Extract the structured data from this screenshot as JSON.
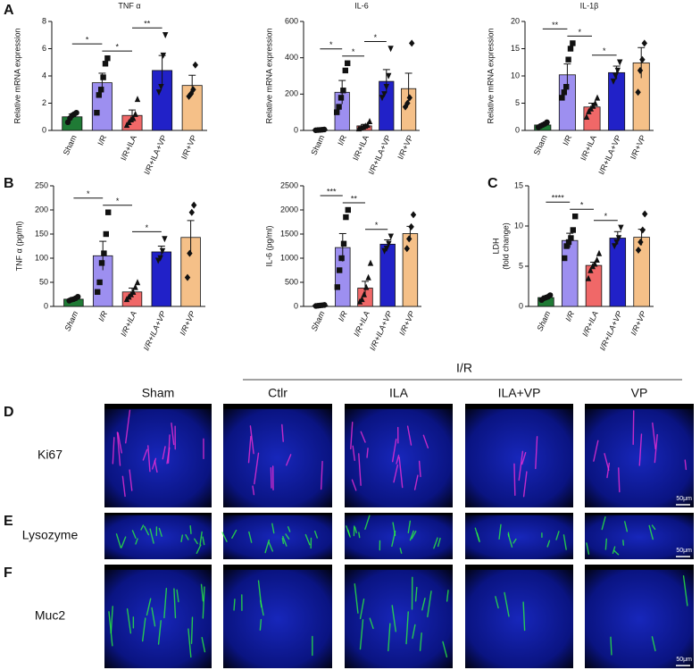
{
  "chart_data": [
    {
      "type": "bar",
      "panel": "A",
      "title": "TNF α",
      "ylabel": "Relative mRNA expression",
      "categories": [
        "Sham",
        "I/R",
        "I/R+ILA",
        "I/R+ILA+VP",
        "I/R+VP"
      ],
      "colors": [
        "#1f7a35",
        "#9d8ff0",
        "#f06868",
        "#2121c8",
        "#f5c088"
      ],
      "values": [
        1.0,
        3.5,
        1.1,
        4.4,
        3.3
      ],
      "errors": [
        0.2,
        0.7,
        0.4,
        1.1,
        0.75
      ],
      "points": [
        [
          0.6,
          0.9,
          1.1,
          1.2,
          1.3
        ],
        [
          1.3,
          2.6,
          3.0,
          3.9,
          4.9,
          5.3
        ],
        [
          0.4,
          0.6,
          0.8,
          0.9,
          1.2,
          2.3
        ],
        [
          2.8,
          3.2,
          5.5,
          7.0
        ],
        [
          2.5,
          2.7,
          3.0,
          4.8
        ]
      ],
      "ylim": [
        0,
        8
      ],
      "yticks": [
        0,
        2,
        4,
        6,
        8
      ],
      "significance": [
        {
          "label": "*",
          "from": 0,
          "to": 1
        },
        {
          "label": "*",
          "from": 1,
          "to": 2
        },
        {
          "label": "**",
          "from": 2,
          "to": 3
        }
      ]
    },
    {
      "type": "bar",
      "title": "IL-6",
      "ylabel": "Relative mRNA expression",
      "categories": [
        "Sham",
        "I/R",
        "I/R+ILA",
        "I/R+ILA+VP",
        "I/R+VP"
      ],
      "colors": [
        "#1f7a35",
        "#9d8ff0",
        "#f06868",
        "#2121c8",
        "#f5c088"
      ],
      "values": [
        3,
        210,
        25,
        270,
        230
      ],
      "errors": [
        1,
        65,
        8,
        65,
        85
      ],
      "points": [
        [
          1,
          2,
          3,
          4,
          5
        ],
        [
          100,
          130,
          180,
          220,
          330,
          370
        ],
        [
          10,
          15,
          20,
          25,
          30,
          50
        ],
        [
          180,
          200,
          240,
          300,
          450
        ],
        [
          130,
          150,
          180,
          480
        ]
      ],
      "ylim": [
        0,
        600
      ],
      "yticks": [
        0,
        200,
        400,
        600
      ],
      "significance": [
        {
          "label": "*",
          "from": 0,
          "to": 1
        },
        {
          "label": "*",
          "from": 1,
          "to": 2
        },
        {
          "label": "*",
          "from": 2,
          "to": 3
        }
      ]
    },
    {
      "type": "bar",
      "title": "IL-1β",
      "ylabel": "Relative mRNA expression",
      "categories": [
        "Sham",
        "I/R",
        "I/R+ILA",
        "I/R+ILA+VP",
        "I/R+VP"
      ],
      "colors": [
        "#1f7a35",
        "#9d8ff0",
        "#f06868",
        "#2121c8",
        "#f5c088"
      ],
      "values": [
        1.0,
        10.2,
        4.3,
        10.6,
        12.4
      ],
      "errors": [
        0.2,
        2.0,
        0.7,
        1.2,
        2.8
      ],
      "points": [
        [
          0.6,
          0.8,
          1.0,
          1.2,
          1.5
        ],
        [
          6,
          7,
          8,
          13,
          15,
          16
        ],
        [
          2.5,
          3.5,
          4,
          4.5,
          5,
          6
        ],
        [
          9,
          10,
          11,
          12.5
        ],
        [
          7,
          11,
          13,
          16
        ]
      ],
      "ylim": [
        0,
        20
      ],
      "yticks": [
        0,
        5,
        10,
        15,
        20
      ],
      "significance": [
        {
          "label": "**",
          "from": 0,
          "to": 1
        },
        {
          "label": "*",
          "from": 1,
          "to": 2
        },
        {
          "label": "*",
          "from": 2,
          "to": 3
        }
      ]
    },
    {
      "type": "bar",
      "panel": "B",
      "ylabel": "TNF α (pg/ml)",
      "categories": [
        "Sham",
        "I/R",
        "I/R+ILA",
        "I/R+ILA+VP",
        "I/R+VP"
      ],
      "colors": [
        "#1f7a35",
        "#9d8ff0",
        "#f06868",
        "#2121c8",
        "#f5c088"
      ],
      "values": [
        15,
        105,
        30,
        113,
        143
      ],
      "errors": [
        3,
        30,
        8,
        12,
        35
      ],
      "points": [
        [
          12,
          14,
          15,
          17,
          20
        ],
        [
          30,
          50,
          90,
          110,
          150,
          195
        ],
        [
          15,
          20,
          25,
          30,
          40,
          50
        ],
        [
          95,
          100,
          115,
          140
        ],
        [
          60,
          110,
          195,
          210
        ]
      ],
      "ylim": [
        0,
        250
      ],
      "yticks": [
        0,
        50,
        100,
        150,
        200,
        250
      ],
      "significance": [
        {
          "label": "*",
          "from": 0,
          "to": 1
        },
        {
          "label": "*",
          "from": 1,
          "to": 2
        },
        {
          "label": "*",
          "from": 2,
          "to": 3
        }
      ]
    },
    {
      "type": "bar",
      "ylabel": "IL-6 (pg/ml)",
      "categories": [
        "Sham",
        "I/R",
        "I/R+ILA",
        "I/R+ILA+VP",
        "I/R+VP"
      ],
      "colors": [
        "#1f7a35",
        "#9d8ff0",
        "#f06868",
        "#2121c8",
        "#f5c088"
      ],
      "values": [
        20,
        1220,
        380,
        1290,
        1510
      ],
      "errors": [
        5,
        290,
        140,
        90,
        150
      ],
      "points": [
        [
          10,
          15,
          20,
          25,
          30
        ],
        [
          400,
          750,
          1000,
          1300,
          1850,
          2000
        ],
        [
          100,
          150,
          250,
          400,
          600,
          900
        ],
        [
          1150,
          1200,
          1300,
          1450
        ],
        [
          1200,
          1400,
          1650,
          1900
        ]
      ],
      "ylim": [
        0,
        2500
      ],
      "yticks": [
        0,
        500,
        1000,
        1500,
        2000,
        2500
      ],
      "significance": [
        {
          "label": "***",
          "from": 0,
          "to": 1
        },
        {
          "label": "**",
          "from": 1,
          "to": 2
        },
        {
          "label": "*",
          "from": 2,
          "to": 3
        }
      ]
    },
    {
      "type": "bar",
      "panel": "C",
      "ylabel": [
        "LDH",
        "(fold change)"
      ],
      "categories": [
        "Sham",
        "I/R",
        "I/R+ILA",
        "I/R+ILA+VP",
        "I/R+VP"
      ],
      "colors": [
        "#1f7a35",
        "#9d8ff0",
        "#f06868",
        "#2121c8",
        "#f5c088"
      ],
      "values": [
        1.1,
        8.2,
        5.1,
        8.5,
        8.6
      ],
      "errors": [
        0.2,
        0.9,
        0.4,
        0.8,
        1.0
      ],
      "points": [
        [
          0.8,
          1.0,
          1.1,
          1.2,
          1.4
        ],
        [
          6,
          7.5,
          8,
          8.5,
          9.5,
          11.2
        ],
        [
          3.5,
          4.5,
          5,
          5.3,
          5.8,
          6.6
        ],
        [
          7.5,
          8,
          8.5,
          9.8
        ],
        [
          7,
          8,
          9.5,
          11.5
        ]
      ],
      "ylim": [
        0,
        15
      ],
      "yticks": [
        0,
        5,
        10,
        15
      ],
      "significance": [
        {
          "label": "****",
          "from": 0,
          "to": 1
        },
        {
          "label": "*",
          "from": 1,
          "to": 2
        },
        {
          "label": "*",
          "from": 2,
          "to": 3
        }
      ]
    }
  ],
  "image_panel": {
    "group_label": "I/R",
    "columns": [
      "Sham",
      "Ctlr",
      "ILA",
      "ILA+VP",
      "VP"
    ],
    "rows": [
      {
        "panel": "D",
        "label": "Ki67",
        "scale_bar": "50μm"
      },
      {
        "panel": "E",
        "label": "Lysozyme",
        "scale_bar": "50μm"
      },
      {
        "panel": "F",
        "label": "Muc2",
        "scale_bar": "50μm"
      }
    ]
  }
}
